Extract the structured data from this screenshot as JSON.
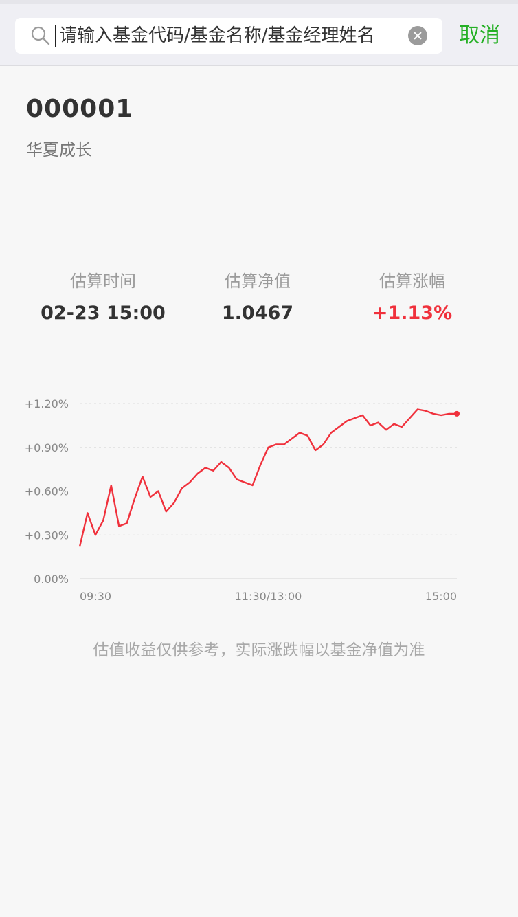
{
  "search": {
    "placeholder": "请输入基金代码/基金名称/基金经理姓名",
    "cancel_label": "取消"
  },
  "fund": {
    "code": "000001",
    "name": "华夏成长"
  },
  "metrics": [
    {
      "label": "估算时间",
      "value": "02-23 15:00"
    },
    {
      "label": "估算净值",
      "value": "1.0467"
    },
    {
      "label": "估算涨幅",
      "value": "+1.13%"
    }
  ],
  "colors": {
    "accent_green": "#25b025",
    "up_red": "#f0313c"
  },
  "icons": {
    "search": "search-icon",
    "clear": "clear-icon"
  },
  "chart_data": {
    "type": "line",
    "title": "",
    "xlabel": "",
    "ylabel": "",
    "x_ticks": [
      "09:30",
      "11:30/13:00",
      "15:00"
    ],
    "y_ticks": [
      "0.00%",
      "+0.30%",
      "+0.60%",
      "+0.90%",
      "+1.20%"
    ],
    "ylim": [
      0,
      1.2
    ],
    "grid": true,
    "series": [
      {
        "color": "#f0313c",
        "x": [
          "09:30",
          "09:35",
          "09:40",
          "09:45",
          "09:50",
          "09:55",
          "10:00",
          "10:05",
          "10:10",
          "10:15",
          "10:20",
          "10:25",
          "10:30",
          "10:35",
          "10:40",
          "10:45",
          "10:50",
          "10:55",
          "11:00",
          "11:05",
          "11:10",
          "11:15",
          "11:20",
          "11:25",
          "11:30",
          "13:05",
          "13:10",
          "13:15",
          "13:20",
          "13:25",
          "13:30",
          "13:35",
          "13:40",
          "13:45",
          "13:50",
          "13:55",
          "14:00",
          "14:05",
          "14:10",
          "14:15",
          "14:20",
          "14:25",
          "14:30",
          "14:35",
          "14:40",
          "14:45",
          "14:50",
          "14:55",
          "15:00"
        ],
        "values": [
          0.22,
          0.45,
          0.3,
          0.4,
          0.64,
          0.36,
          0.38,
          0.55,
          0.7,
          0.56,
          0.6,
          0.46,
          0.52,
          0.62,
          0.66,
          0.72,
          0.76,
          0.74,
          0.8,
          0.76,
          0.68,
          0.66,
          0.64,
          0.78,
          0.9,
          0.92,
          0.92,
          0.96,
          1.0,
          0.98,
          0.88,
          0.92,
          1.0,
          1.04,
          1.08,
          1.1,
          1.12,
          1.05,
          1.07,
          1.02,
          1.06,
          1.04,
          1.1,
          1.16,
          1.15,
          1.13,
          1.12,
          1.13,
          1.13
        ]
      }
    ]
  },
  "footnote": "估值收益仅供参考，实际涨跌幅以基金净值为准"
}
